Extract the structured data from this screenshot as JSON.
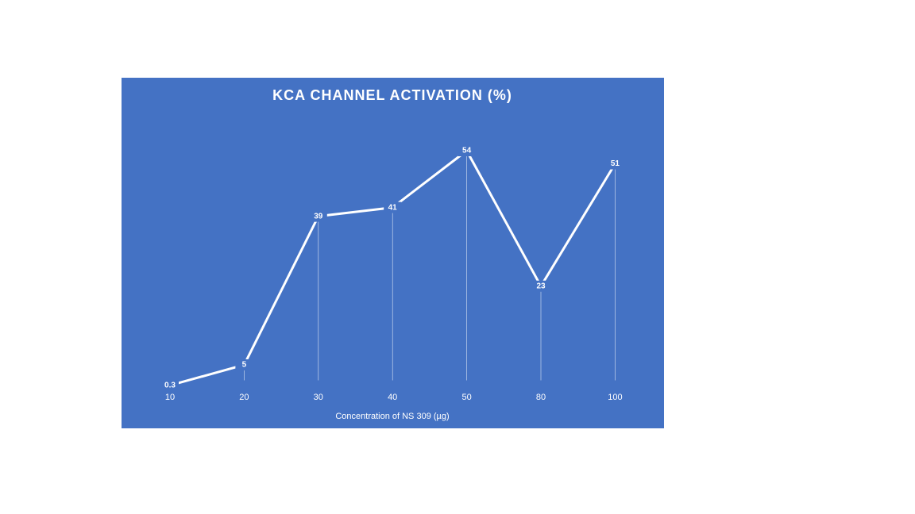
{
  "chart_data": {
    "type": "line",
    "title": "KCA CHANNEL ACTIVATION (%)",
    "x_label": "Concentration of NS 309 (µg)",
    "categories": [
      "10",
      "20",
      "30",
      "40",
      "50",
      "80",
      "100"
    ],
    "values": [
      0.3,
      5,
      39,
      41,
      54,
      23,
      51
    ],
    "color": "#ffffff",
    "background": "#4472c4",
    "drop_lines": true,
    "data_labels": true
  }
}
